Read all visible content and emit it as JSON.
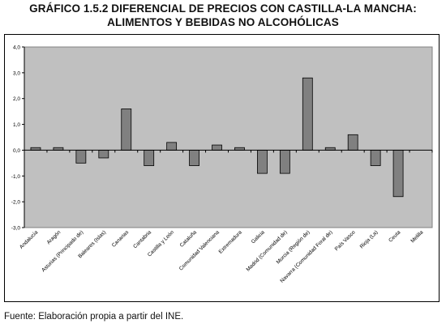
{
  "title_line1": "GRÁFICO 1.5.2 DIFERENCIAL DE PRECIOS CON CASTILLA-LA MANCHA:",
  "title_line2": "ALIMENTOS Y BEBIDAS NO ALCOHÓLICAS",
  "source": "Fuente: Elaboración propia a partir del INE.",
  "colors": {
    "plot_bg": "#c0c0c0",
    "bar_fill": "#808080",
    "bar_stroke": "#000000"
  },
  "chart_data": {
    "type": "bar",
    "title": "GRÁFICO 1.5.2 DIFERENCIAL DE PRECIOS CON CASTILLA-LA MANCHA: ALIMENTOS Y BEBIDAS NO ALCOHÓLICAS",
    "xlabel": "",
    "ylabel": "",
    "ylim": [
      -3.0,
      4.0
    ],
    "yticks": [
      "4,0",
      "3,0",
      "2,0",
      "1,0",
      "0,0",
      "-1,0",
      "-2,0",
      "-3,0"
    ],
    "ytick_values": [
      4,
      3,
      2,
      1,
      0,
      -1,
      -2,
      -3
    ],
    "grid": false,
    "categories": [
      "Andalucía",
      "Aragón",
      "Asturias (Principado de)",
      "Baleares (Islas)",
      "Canarias",
      "Cantabria",
      "Castilla y León",
      "Cataluña",
      "Comunidad Valenciana",
      "Extremadura",
      "Galicia",
      "Madrid (Comunidad de)",
      "Murcia (Región de)",
      "Navarra (Comunidad Foral de)",
      "País Vasco",
      "Rioja (La)",
      "Ceuta",
      "Melilla"
    ],
    "values": [
      0.1,
      0.1,
      -0.5,
      -0.3,
      1.6,
      -0.6,
      0.3,
      -0.6,
      0.2,
      0.1,
      -0.9,
      -0.9,
      2.8,
      0.1,
      0.6,
      -0.6,
      -1.8,
      0.0
    ]
  }
}
